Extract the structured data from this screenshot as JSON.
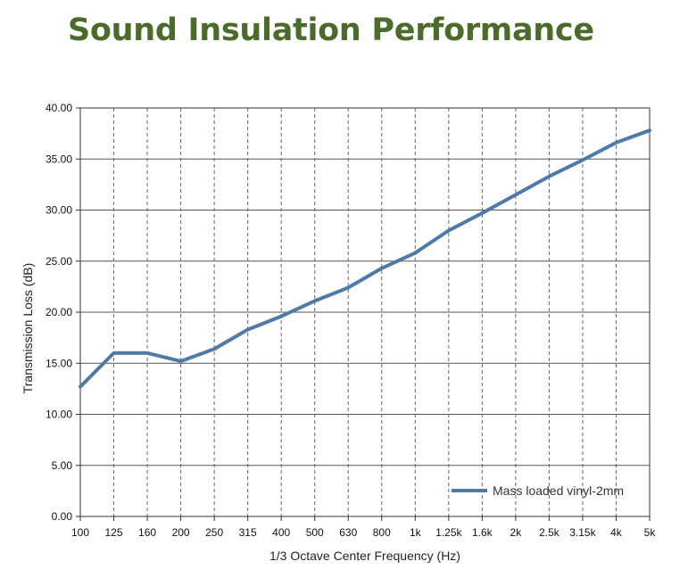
{
  "page": {
    "title": "Sound Insulation Performance"
  },
  "chart_data": {
    "type": "line",
    "title": "Sound Insulation Performance",
    "xlabel": "1/3 Octave Center Frequency (Hz)",
    "ylabel": "Transmission Loss (dB)",
    "categories": [
      "100",
      "125",
      "160",
      "200",
      "250",
      "315",
      "400",
      "500",
      "630",
      "800",
      "1k",
      "1.25k",
      "1.6k",
      "2k",
      "2.5k",
      "3.15k",
      "4k",
      "5k"
    ],
    "y_ticks": [
      "0.00",
      "5.00",
      "10.00",
      "15.00",
      "20.00",
      "25.00",
      "30.00",
      "35.00",
      "40.00"
    ],
    "ylim": [
      0,
      40
    ],
    "series": [
      {
        "name": "Mass loaded vinyl-2mm",
        "color": "#4f79a7",
        "values": [
          12.7,
          16.0,
          16.0,
          15.2,
          16.4,
          18.3,
          19.6,
          21.1,
          22.4,
          24.3,
          25.8,
          28.0,
          29.7,
          31.5,
          33.3,
          34.9,
          36.6,
          37.8
        ]
      }
    ],
    "grid": {
      "horizontal": "solid",
      "vertical": "dashed"
    },
    "legend_position": "bottom-right"
  }
}
